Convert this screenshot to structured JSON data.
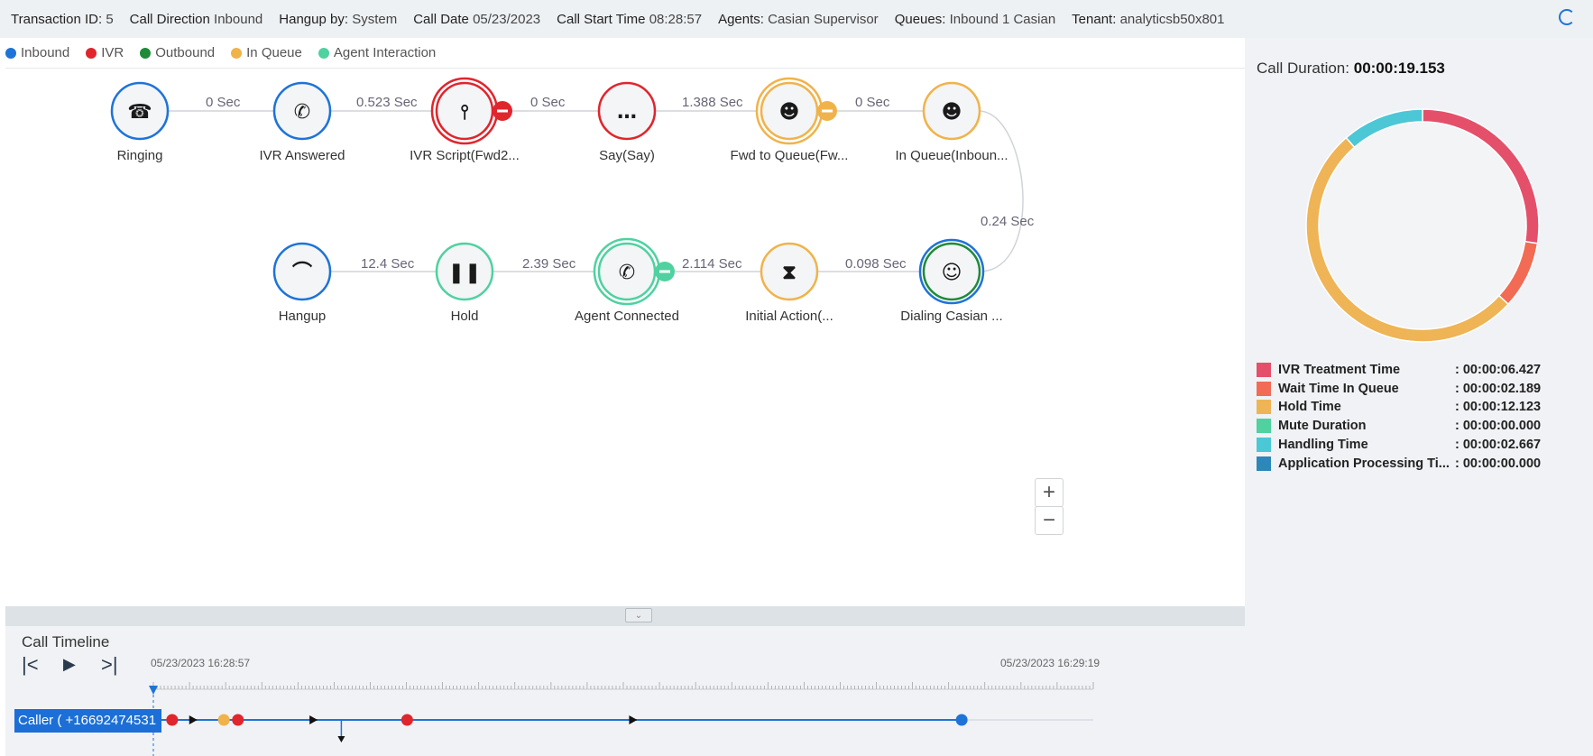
{
  "header": {
    "transaction_id_label": "Transaction ID:",
    "transaction_id": "5",
    "call_direction_label": "Call Direction",
    "call_direction": "Inbound",
    "hangup_by_label": "Hangup by:",
    "hangup_by": "System",
    "call_date_label": "Call Date",
    "call_date": "05/23/2023",
    "call_start_label": "Call Start Time",
    "call_start": "08:28:57",
    "agents_label": "Agents:",
    "agents": "Casian Supervisor",
    "queues_label": "Queues:",
    "queues": "Inbound 1 Casian",
    "tenant_label": "Tenant:",
    "tenant": "analyticsb50x801"
  },
  "legend": [
    {
      "label": "Inbound",
      "color": "#1e73d8"
    },
    {
      "label": "IVR",
      "color": "#e0252d"
    },
    {
      "label": "Outbound",
      "color": "#1f8a3a"
    },
    {
      "label": "In Queue",
      "color": "#f0b34a"
    },
    {
      "label": "Agent Interaction",
      "color": "#4fd1a0"
    }
  ],
  "flow": {
    "nodes": [
      {
        "id": "ringing",
        "label": "Ringing",
        "icon": "phone-ringing-icon",
        "color": "#1e73d8"
      },
      {
        "id": "ivr-answered",
        "label": "IVR Answered",
        "icon": "phone-answered-icon",
        "color": "#1e73d8"
      },
      {
        "id": "ivr-script",
        "label": "IVR Script(Fwd2...",
        "icon": "script-tree-icon",
        "color": "#e0252d",
        "badge": true
      },
      {
        "id": "say",
        "label": "Say(Say)",
        "icon": "speech-bubble-icon",
        "color": "#e0252d"
      },
      {
        "id": "fwd-queue",
        "label": "Fwd to Queue(Fw...",
        "icon": "users-forward-icon",
        "color": "#f0b34a",
        "badge": true
      },
      {
        "id": "in-queue",
        "label": "In Queue(Inboun...",
        "icon": "users-icon",
        "color": "#f0b34a"
      },
      {
        "id": "hangup",
        "label": "Hangup",
        "icon": "hangup-icon",
        "color": "#1e73d8"
      },
      {
        "id": "hold",
        "label": "Hold",
        "icon": "pause-icon",
        "color": "#4fd1a0"
      },
      {
        "id": "agent-connected",
        "label": "Agent Connected",
        "icon": "phone-answered-icon",
        "color": "#4fd1a0",
        "badge": true
      },
      {
        "id": "initial-action",
        "label": "Initial Action(...",
        "icon": "hourglass-icon",
        "color": "#f0b34a"
      },
      {
        "id": "dialing",
        "label": "Dialing Casian ...",
        "icon": "agent-headset-icon",
        "color": "#1f8a3a"
      }
    ],
    "edges": [
      {
        "label": "0 Sec"
      },
      {
        "label": "0.523 Sec"
      },
      {
        "label": "0 Sec"
      },
      {
        "label": "1.388 Sec"
      },
      {
        "label": "0 Sec"
      },
      {
        "label": "0.24 Sec"
      },
      {
        "label": "12.4 Sec"
      },
      {
        "label": "2.39 Sec"
      },
      {
        "label": "2.114 Sec"
      },
      {
        "label": "0.098 Sec"
      }
    ]
  },
  "zoom": {
    "in": "+",
    "out": "−"
  },
  "timeline": {
    "title": "Call Timeline",
    "start": "05/23/2023 16:28:57",
    "end": "05/23/2023 16:29:19",
    "caller": "Caller ( +16692474531",
    "events_fraction": [
      0.0,
      0.02,
      0.075,
      0.09,
      0.27,
      0.86
    ],
    "event_colors": [
      "#1e73d8",
      "#e0252d",
      "#f0b34a",
      "#e0252d",
      "#e0252d",
      "#1e73d8"
    ],
    "arrows_fraction": [
      0.042,
      0.17,
      0.51
    ]
  },
  "summary": {
    "call_duration_label": "Call Duration:",
    "call_duration": "00:00:19.153",
    "items": [
      {
        "name": "IVR Treatment Time",
        "value": ": 00:00:06.427",
        "color": "#e4506a",
        "seconds": 6.427
      },
      {
        "name": "Wait Time In Queue",
        "value": ": 00:00:02.189",
        "color": "#f26b55",
        "seconds": 2.189
      },
      {
        "name": "Hold Time",
        "value": ": 00:00:12.123",
        "color": "#eeb455",
        "seconds": 12.123
      },
      {
        "name": "Mute Duration",
        "value": ": 00:00:00.000",
        "color": "#4fd1a0",
        "seconds": 0
      },
      {
        "name": "Handling Time",
        "value": ": 00:00:02.667",
        "color": "#4cc7d6",
        "seconds": 2.667
      },
      {
        "name": "Application Processing Ti...",
        "value": ": 00:00:00.000",
        "color": "#2f86b8",
        "seconds": 0
      }
    ]
  }
}
